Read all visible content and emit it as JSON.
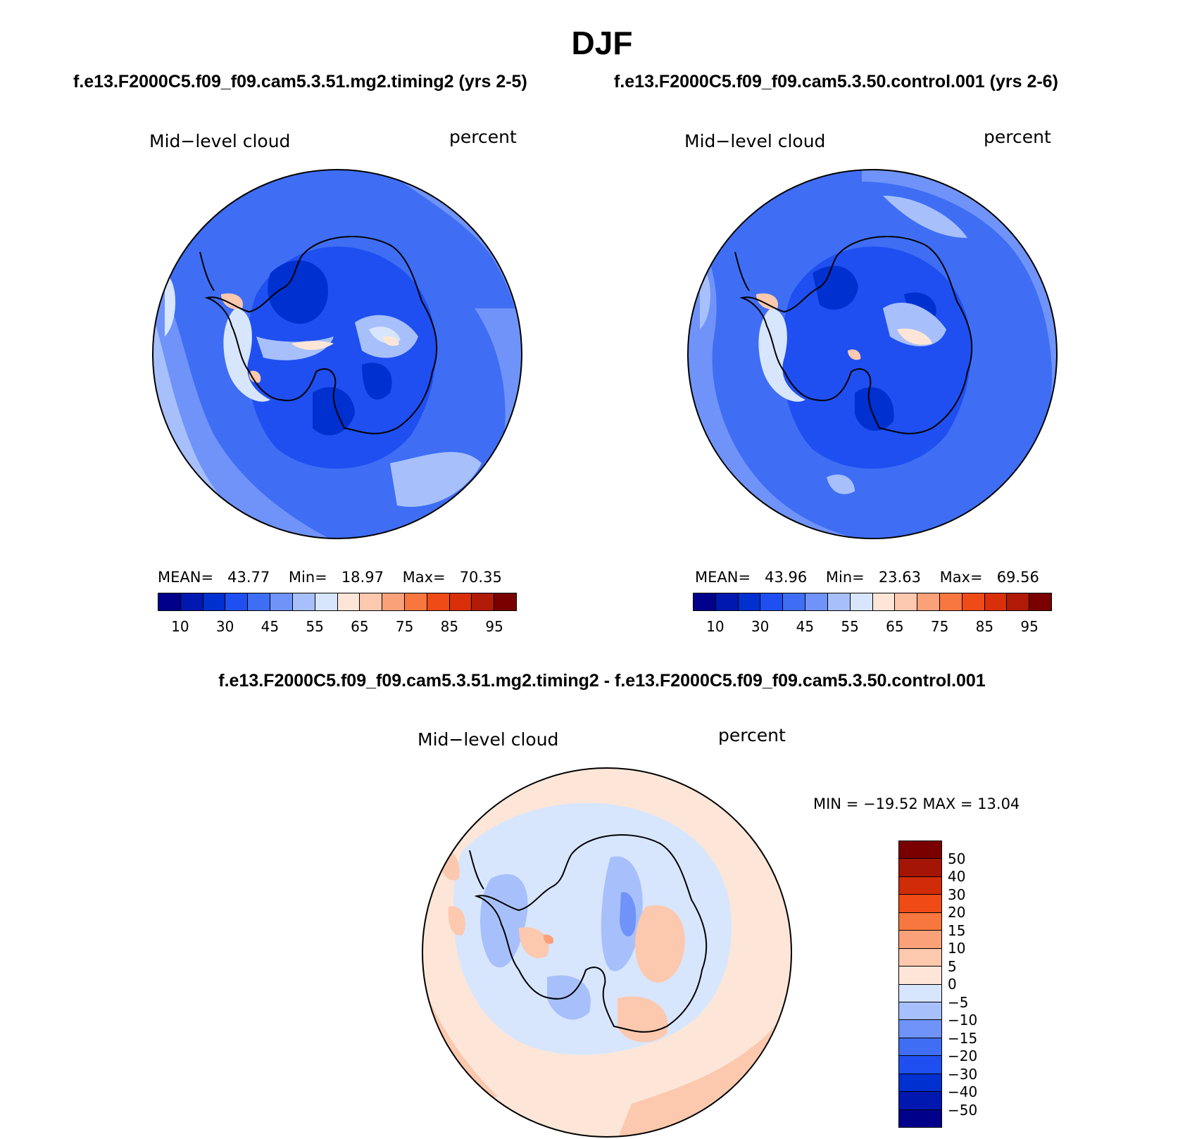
{
  "page_title": "DJF",
  "panels": [
    {
      "subtitle": "f.e13.F2000C5.f09_f09.cam5.3.51.mg2.timing2 (yrs 2-5)",
      "left_label": "Mid−level cloud",
      "right_label": "percent",
      "stats": {
        "mean_label": "MEAN=",
        "mean": "43.77",
        "min_label": "Min=",
        "min": "18.97",
        "max_label": "Max=",
        "max": "70.35"
      }
    },
    {
      "subtitle": "f.e13.F2000C5.f09_f09.cam5.3.50.control.001 (yrs 2-6)",
      "left_label": "Mid−level cloud",
      "right_label": "percent",
      "stats": {
        "mean_label": "MEAN=",
        "mean": "43.96",
        "min_label": "Min=",
        "min": "23.63",
        "max_label": "Max=",
        "max": "69.56"
      }
    },
    {
      "subtitle": "f.e13.F2000C5.f09_f09.cam5.3.51.mg2.timing2 - f.e13.F2000C5.f09_f09.cam5.3.50.control.001",
      "left_label": "Mid−level cloud",
      "right_label": "percent",
      "stats_text": "MIN = −19.52 MAX =   13.04"
    }
  ],
  "colorbar_abs": {
    "colors": [
      "#00008b",
      "#0018b0",
      "#0030d0",
      "#1f4ff0",
      "#3f6ef5",
      "#6f93f8",
      "#a7c0fb",
      "#d7e6fd",
      "#fde6d7",
      "#fcc8ae",
      "#fba17a",
      "#f8773e",
      "#ef4b17",
      "#d92f0a",
      "#b01a06",
      "#7a0000"
    ],
    "tick_labels": [
      "10",
      "30",
      "45",
      "55",
      "65",
      "75",
      "85",
      "95"
    ]
  },
  "colorbar_diff": {
    "colors_top_to_bottom": [
      "#7a0000",
      "#a51506",
      "#d02c0a",
      "#f04a17",
      "#f8773e",
      "#fba17a",
      "#fcc8ae",
      "#fde6d7",
      "#d7e6fd",
      "#a7c0fb",
      "#6f93f8",
      "#3f6ef5",
      "#1f4ff0",
      "#0030d0",
      "#0018b0",
      "#00008b"
    ],
    "tick_labels": [
      "50",
      "40",
      "30",
      "20",
      "15",
      "10",
      "5",
      "0",
      "−5",
      "−10",
      "−15",
      "−20",
      "−30",
      "−40",
      "−50"
    ]
  },
  "map_colors": {
    "abs_base": "#3f6ef5",
    "abs_dark": "#1f4ff0",
    "abs_darker": "#0030d0",
    "abs_light": "#6f93f8",
    "abs_lighter": "#a7c0fb",
    "abs_pale": "#d7e6fd",
    "abs_warm": "#fde6d7",
    "abs_warm2": "#fcc8ae",
    "diff_base": "#fde6d7",
    "diff_cool": "#d7e6fd",
    "diff_cool2": "#a7c0fb",
    "diff_cool3": "#6f93f8",
    "diff_cool4": "#3f6ef5",
    "diff_warm2": "#fcc8ae",
    "diff_warm3": "#fba17a"
  }
}
